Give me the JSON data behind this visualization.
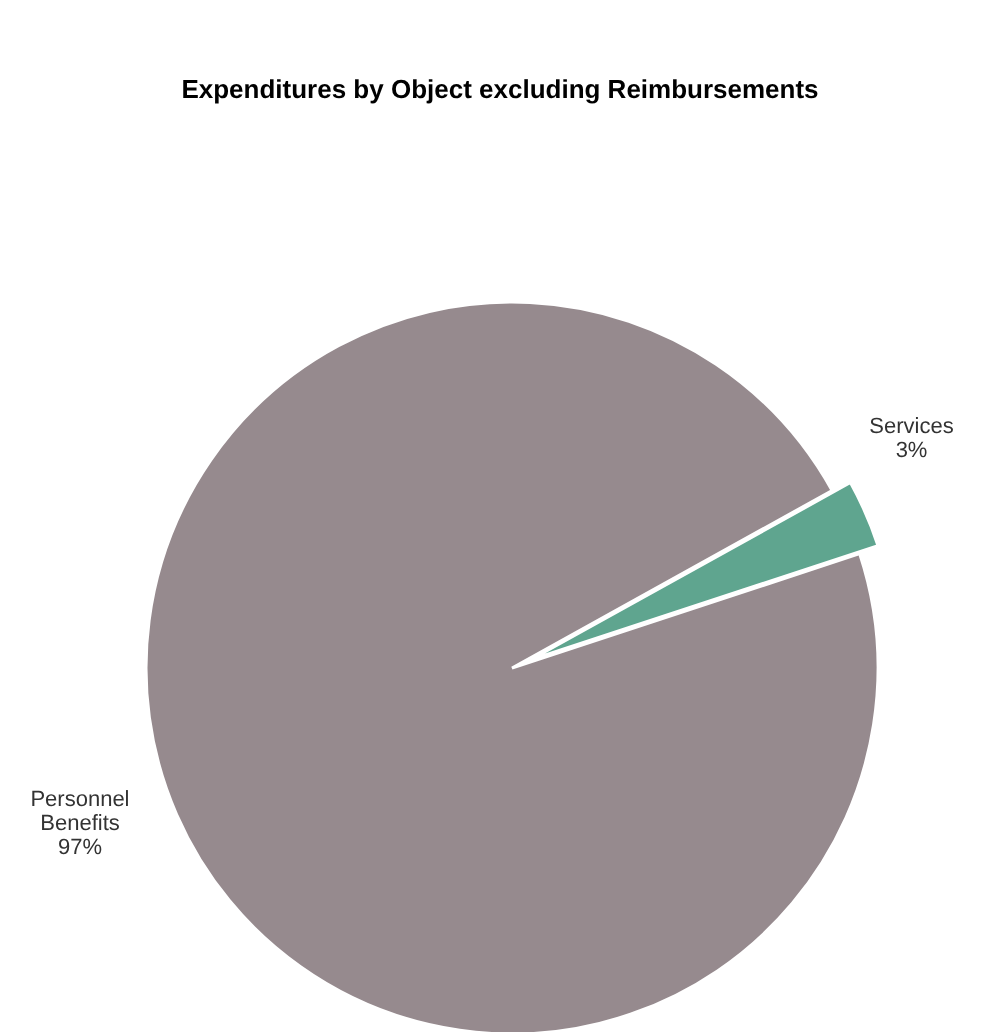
{
  "chart_data": {
    "type": "pie",
    "title": "Expenditures by Object excluding Reimbursements",
    "categories": [
      "Services",
      "Personnel Benefits"
    ],
    "values": [
      3,
      97
    ],
    "colors": [
      "#5fa58f",
      "#968a8e"
    ],
    "value_labels": [
      "3%",
      "97%"
    ]
  }
}
